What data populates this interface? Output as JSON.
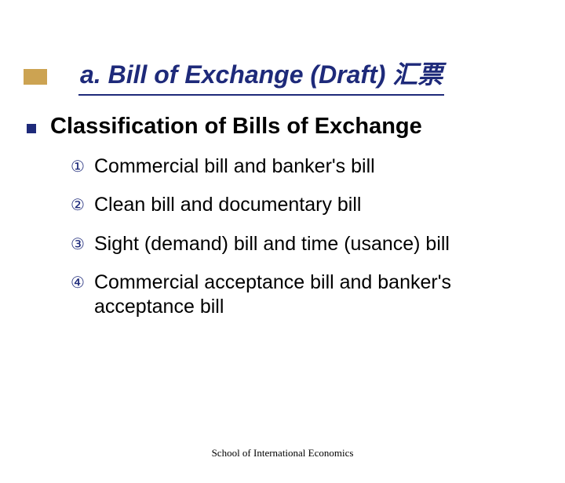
{
  "colors": {
    "accent_bar": "#cca352",
    "title_text": "#1e2a7a",
    "title_underline": "#1e2a7a",
    "bullet_square": "#1e2a7a",
    "marker": "#1e2a7a",
    "body_text": "#000000",
    "background": "#ffffff"
  },
  "typography": {
    "title_fontsize": 32,
    "title_style": "italic bold",
    "subtitle_fontsize": 29,
    "subtitle_weight": "bold",
    "body_fontsize": 25,
    "marker_fontsize": 20,
    "footer_fontsize": 13
  },
  "title": "a.   Bill of Exchange (Draft) 汇票",
  "subtitle": "Classification of Bills of Exchange",
  "items": [
    {
      "marker": "①",
      "text": "Commercial bill and banker's bill"
    },
    {
      "marker": "②",
      "text": "Clean bill and documentary bill"
    },
    {
      "marker": "③",
      "text": "Sight (demand) bill and time (usance) bill"
    },
    {
      "marker": "④",
      "text": "Commercial acceptance bill and banker's acceptance bill"
    }
  ],
  "footer": "School of International Economics"
}
